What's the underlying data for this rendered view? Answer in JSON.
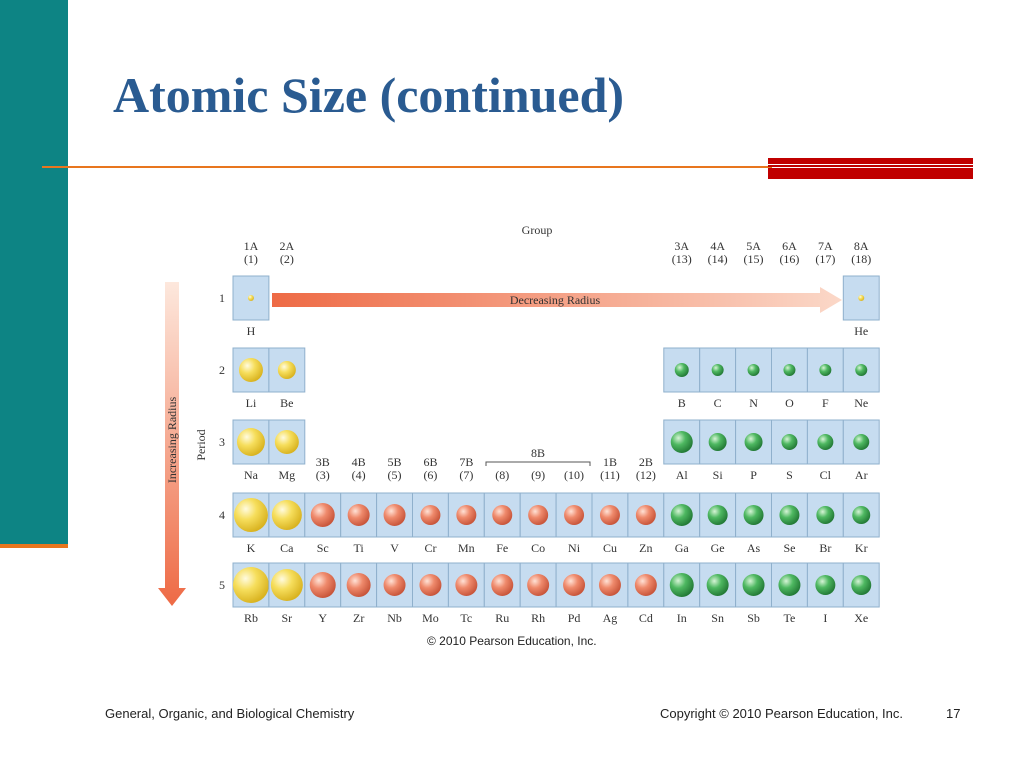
{
  "slide": {
    "title": "Atomic Size (continued)",
    "footer_left": "General, Organic, and Biological Chemistry",
    "footer_right": "Copyright © 2010 Pearson Education, Inc.",
    "page_number": "17",
    "figure_credit": "© 2010 Pearson Education, Inc."
  },
  "figure": {
    "group_label": "Group",
    "period_label": "Period",
    "decreasing_label": "Decreasing Radius",
    "increasing_label": "Increasing Radius",
    "group_8b_label": "8B",
    "groups": [
      {
        "name": "1A",
        "num": "(1)",
        "col": 0
      },
      {
        "name": "2A",
        "num": "(2)",
        "col": 1
      },
      {
        "name": "3B",
        "num": "(3)",
        "col": 2
      },
      {
        "name": "4B",
        "num": "(4)",
        "col": 3
      },
      {
        "name": "5B",
        "num": "(5)",
        "col": 4
      },
      {
        "name": "6B",
        "num": "(6)",
        "col": 5
      },
      {
        "name": "7B",
        "num": "(7)",
        "col": 6
      },
      {
        "name": "",
        "num": "(8)",
        "col": 7
      },
      {
        "name": "",
        "num": "(9)",
        "col": 8
      },
      {
        "name": "",
        "num": "(10)",
        "col": 9
      },
      {
        "name": "1B",
        "num": "(11)",
        "col": 10
      },
      {
        "name": "2B",
        "num": "(12)",
        "col": 11
      },
      {
        "name": "3A",
        "num": "(13)",
        "col": 12
      },
      {
        "name": "4A",
        "num": "(14)",
        "col": 13
      },
      {
        "name": "5A",
        "num": "(15)",
        "col": 14
      },
      {
        "name": "6A",
        "num": "(16)",
        "col": 15
      },
      {
        "name": "7A",
        "num": "(17)",
        "col": 16
      },
      {
        "name": "8A",
        "num": "(18)",
        "col": 17
      }
    ],
    "periods": [
      "1",
      "2",
      "3",
      "4",
      "5"
    ],
    "colors": {
      "cell": "#c6dcf0",
      "cell_border": "#8fb0cc",
      "s_block": "#f2d64a",
      "d_block": "#e97a5e",
      "p_block": "#3fa456",
      "arrow": "#ef7a55"
    },
    "elements": [
      {
        "sym": "H",
        "period": 1,
        "col": 0,
        "block": "s",
        "r": 3
      },
      {
        "sym": "He",
        "period": 1,
        "col": 17,
        "block": "s",
        "r": 3
      },
      {
        "sym": "Li",
        "period": 2,
        "col": 0,
        "block": "s",
        "r": 12
      },
      {
        "sym": "Be",
        "period": 2,
        "col": 1,
        "block": "s",
        "r": 9
      },
      {
        "sym": "B",
        "period": 2,
        "col": 12,
        "block": "p",
        "r": 7
      },
      {
        "sym": "C",
        "period": 2,
        "col": 13,
        "block": "p",
        "r": 6
      },
      {
        "sym": "N",
        "period": 2,
        "col": 14,
        "block": "p",
        "r": 6
      },
      {
        "sym": "O",
        "period": 2,
        "col": 15,
        "block": "p",
        "r": 6
      },
      {
        "sym": "F",
        "period": 2,
        "col": 16,
        "block": "p",
        "r": 6
      },
      {
        "sym": "Ne",
        "period": 2,
        "col": 17,
        "block": "p",
        "r": 6
      },
      {
        "sym": "Na",
        "period": 3,
        "col": 0,
        "block": "s",
        "r": 14
      },
      {
        "sym": "Mg",
        "period": 3,
        "col": 1,
        "block": "s",
        "r": 12
      },
      {
        "sym": "Al",
        "period": 3,
        "col": 12,
        "block": "p",
        "r": 11
      },
      {
        "sym": "Si",
        "period": 3,
        "col": 13,
        "block": "p",
        "r": 9
      },
      {
        "sym": "P",
        "period": 3,
        "col": 14,
        "block": "p",
        "r": 9
      },
      {
        "sym": "S",
        "period": 3,
        "col": 15,
        "block": "p",
        "r": 8
      },
      {
        "sym": "Cl",
        "period": 3,
        "col": 16,
        "block": "p",
        "r": 8
      },
      {
        "sym": "Ar",
        "period": 3,
        "col": 17,
        "block": "p",
        "r": 8
      },
      {
        "sym": "K",
        "period": 4,
        "col": 0,
        "block": "s",
        "r": 17
      },
      {
        "sym": "Ca",
        "period": 4,
        "col": 1,
        "block": "s",
        "r": 15
      },
      {
        "sym": "Sc",
        "period": 4,
        "col": 2,
        "block": "d",
        "r": 12
      },
      {
        "sym": "Ti",
        "period": 4,
        "col": 3,
        "block": "d",
        "r": 11
      },
      {
        "sym": "V",
        "period": 4,
        "col": 4,
        "block": "d",
        "r": 11
      },
      {
        "sym": "Cr",
        "period": 4,
        "col": 5,
        "block": "d",
        "r": 10
      },
      {
        "sym": "Mn",
        "period": 4,
        "col": 6,
        "block": "d",
        "r": 10
      },
      {
        "sym": "Fe",
        "period": 4,
        "col": 7,
        "block": "d",
        "r": 10
      },
      {
        "sym": "Co",
        "period": 4,
        "col": 8,
        "block": "d",
        "r": 10
      },
      {
        "sym": "Ni",
        "period": 4,
        "col": 9,
        "block": "d",
        "r": 10
      },
      {
        "sym": "Cu",
        "period": 4,
        "col": 10,
        "block": "d",
        "r": 10
      },
      {
        "sym": "Zn",
        "period": 4,
        "col": 11,
        "block": "d",
        "r": 10
      },
      {
        "sym": "Ga",
        "period": 4,
        "col": 12,
        "block": "p",
        "r": 11
      },
      {
        "sym": "Ge",
        "period": 4,
        "col": 13,
        "block": "p",
        "r": 10
      },
      {
        "sym": "As",
        "period": 4,
        "col": 14,
        "block": "p",
        "r": 10
      },
      {
        "sym": "Se",
        "period": 4,
        "col": 15,
        "block": "p",
        "r": 10
      },
      {
        "sym": "Br",
        "period": 4,
        "col": 16,
        "block": "p",
        "r": 9
      },
      {
        "sym": "Kr",
        "period": 4,
        "col": 17,
        "block": "p",
        "r": 9
      },
      {
        "sym": "Rb",
        "period": 5,
        "col": 0,
        "block": "s",
        "r": 18
      },
      {
        "sym": "Sr",
        "period": 5,
        "col": 1,
        "block": "s",
        "r": 16
      },
      {
        "sym": "Y",
        "period": 5,
        "col": 2,
        "block": "d",
        "r": 13
      },
      {
        "sym": "Zr",
        "period": 5,
        "col": 3,
        "block": "d",
        "r": 12
      },
      {
        "sym": "Nb",
        "period": 5,
        "col": 4,
        "block": "d",
        "r": 11
      },
      {
        "sym": "Mo",
        "period": 5,
        "col": 5,
        "block": "d",
        "r": 11
      },
      {
        "sym": "Tc",
        "period": 5,
        "col": 6,
        "block": "d",
        "r": 11
      },
      {
        "sym": "Ru",
        "period": 5,
        "col": 7,
        "block": "d",
        "r": 11
      },
      {
        "sym": "Rh",
        "period": 5,
        "col": 8,
        "block": "d",
        "r": 11
      },
      {
        "sym": "Pd",
        "period": 5,
        "col": 9,
        "block": "d",
        "r": 11
      },
      {
        "sym": "Ag",
        "period": 5,
        "col": 10,
        "block": "d",
        "r": 11
      },
      {
        "sym": "Cd",
        "period": 5,
        "col": 11,
        "block": "d",
        "r": 11
      },
      {
        "sym": "In",
        "period": 5,
        "col": 12,
        "block": "p",
        "r": 12
      },
      {
        "sym": "Sn",
        "period": 5,
        "col": 13,
        "block": "p",
        "r": 11
      },
      {
        "sym": "Sb",
        "period": 5,
        "col": 14,
        "block": "p",
        "r": 11
      },
      {
        "sym": "Te",
        "period": 5,
        "col": 15,
        "block": "p",
        "r": 11
      },
      {
        "sym": "I",
        "period": 5,
        "col": 16,
        "block": "p",
        "r": 10
      },
      {
        "sym": "Xe",
        "period": 5,
        "col": 17,
        "block": "p",
        "r": 10
      }
    ]
  }
}
